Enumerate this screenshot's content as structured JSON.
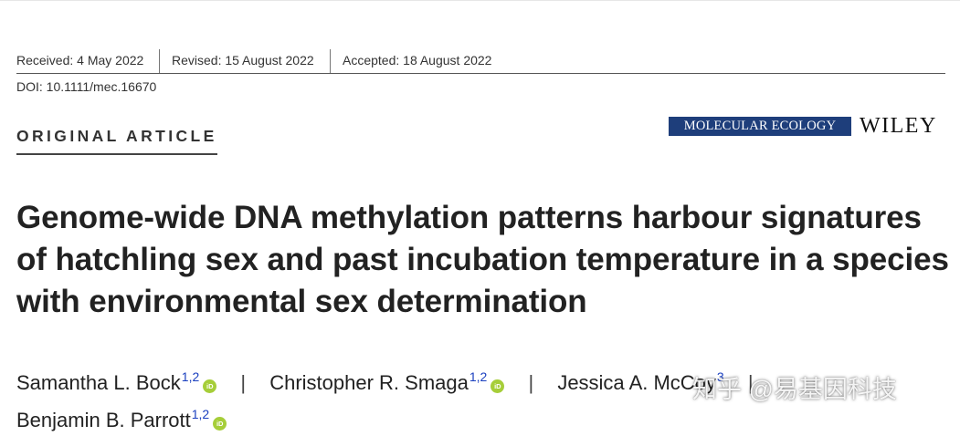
{
  "header": {
    "received": "Received: 4 May 2022",
    "revised": "Revised: 15 August 2022",
    "accepted": "Accepted: 18 August 2022",
    "doi": "DOI: 10.1111/mec.16670"
  },
  "article_type": "ORIGINAL ARTICLE",
  "journal_name": "MOLECULAR ECOLOGY",
  "publisher": "WILEY",
  "title": "Genome-wide DNA methylation patterns harbour signatures of hatchling sex and past incubation temperature in a species with environmental sex determination",
  "authors": [
    {
      "name": "Samantha L. Bock",
      "affil": "1,2"
    },
    {
      "name": "Christopher R. Smaga",
      "affil": "1,2"
    },
    {
      "name": "Jessica A. McCoy",
      "affil": "3"
    },
    {
      "name": "Benjamin B. Parrott",
      "affil": "1,2"
    }
  ],
  "separator": "|",
  "orcid_label": "iD",
  "watermark": "知乎 @易基因科技",
  "colors": {
    "journal_bg": "#1e3e7b",
    "orcid": "#a6ce39",
    "affil": "#1a3fbf"
  }
}
